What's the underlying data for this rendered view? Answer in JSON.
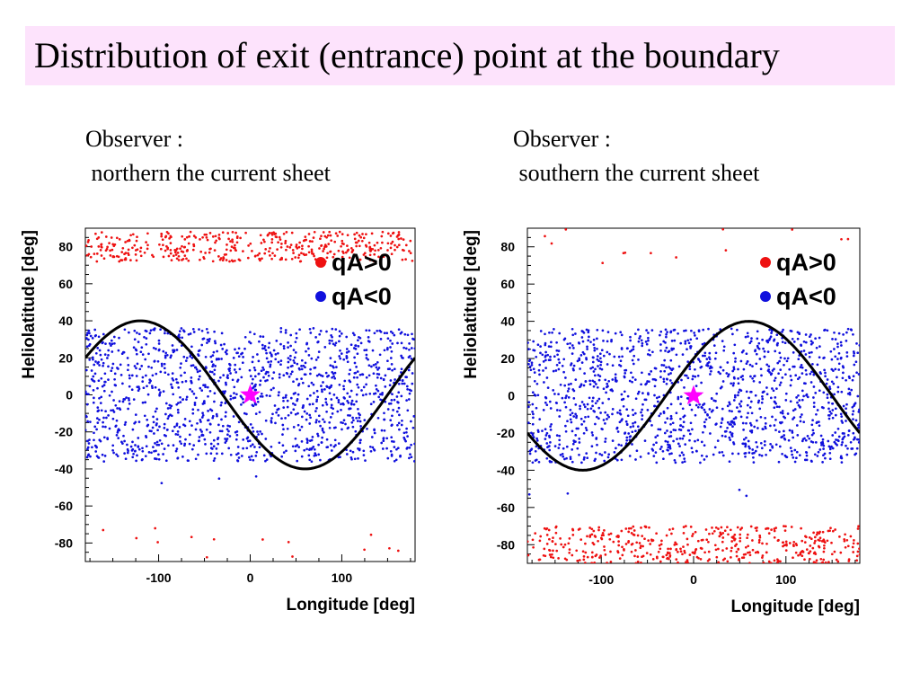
{
  "title": "Distribution of exit (entrance) point at the boundary",
  "colors": {
    "title_bg": "#fde3fc",
    "positive": "#ee1111",
    "negative": "#1010dd",
    "curve": "#000000",
    "star": "#ff00ff"
  },
  "chart_data": [
    {
      "type": "scatter",
      "caption_line1": "Observer :",
      "caption_line2": " northern the current sheet",
      "xlabel": "Longitude [deg]",
      "ylabel": "Heliolatitude [deg]",
      "xlim": [
        -180,
        180
      ],
      "ylim": [
        -90,
        90
      ],
      "xticks": [
        -100,
        0,
        100
      ],
      "yticks": [
        80,
        60,
        40,
        20,
        0,
        -20,
        -40,
        -60,
        -80
      ],
      "grid": false,
      "legend_position": "top-right",
      "series": [
        {
          "name": "qA>0",
          "color": "#ee1111",
          "bands": [
            {
              "lat_min": 72,
              "lat_max": 88,
              "count": 420
            },
            {
              "lat_min": -90,
              "lat_max": -70,
              "count": 14
            }
          ]
        },
        {
          "name": "qA<0",
          "color": "#1010dd",
          "bands": [
            {
              "lat_min": -36,
              "lat_max": 36,
              "count": 1400
            },
            {
              "lat_min": -48,
              "lat_max": -44,
              "count": 3
            }
          ]
        }
      ],
      "current_sheet": {
        "amplitude": 40,
        "peak_longitude": -120
      },
      "observer": {
        "longitude": 0,
        "latitude": 0
      }
    },
    {
      "type": "scatter",
      "caption_line1": "Observer :",
      "caption_line2": " southern the current sheet",
      "xlabel": "Longitude [deg]",
      "ylabel": "Heliolatitude [deg]",
      "xlim": [
        -180,
        180
      ],
      "ylim": [
        -90,
        90
      ],
      "xticks": [
        -100,
        0,
        100
      ],
      "yticks": [
        80,
        60,
        40,
        20,
        0,
        -20,
        -40,
        -60,
        -80
      ],
      "grid": false,
      "legend_position": "top-right",
      "series": [
        {
          "name": "qA>0",
          "color": "#ee1111",
          "bands": [
            {
              "lat_min": -90,
              "lat_max": -70,
              "count": 450
            },
            {
              "lat_min": 70,
              "lat_max": 90,
              "count": 14
            }
          ]
        },
        {
          "name": "qA<0",
          "color": "#1010dd",
          "bands": [
            {
              "lat_min": -36,
              "lat_max": 36,
              "count": 1400
            },
            {
              "lat_min": -57,
              "lat_max": -48,
              "count": 4
            }
          ]
        }
      ],
      "current_sheet": {
        "amplitude": 40,
        "peak_longitude": 60
      },
      "observer": {
        "longitude": 0,
        "latitude": 0
      }
    }
  ]
}
